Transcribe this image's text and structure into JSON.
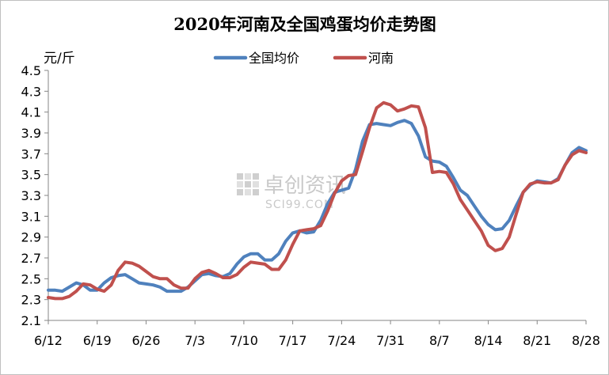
{
  "chart_data": {
    "type": "line",
    "title": "2020年河南及全国鸡蛋均价走势图",
    "ylabel": "元/斤",
    "xlabel": "",
    "ylim": [
      2.1,
      4.5
    ],
    "yticks": [
      "2.1",
      "2.3",
      "2.5",
      "2.7",
      "2.9",
      "3.1",
      "3.3",
      "3.5",
      "3.7",
      "3.9",
      "4.1",
      "4.3",
      "4.5"
    ],
    "xlim": [
      0,
      77
    ],
    "xtick_positions": [
      0,
      7,
      14,
      21,
      28,
      35,
      42,
      49,
      56,
      63,
      70,
      77
    ],
    "xticks": [
      "6/12",
      "6/19",
      "6/26",
      "7/3",
      "7/10",
      "7/17",
      "7/24",
      "7/31",
      "8/7",
      "8/14",
      "8/21",
      "8/28"
    ],
    "grid": false,
    "legend_position": "top-center",
    "x": [
      0,
      1,
      2,
      3,
      4,
      5,
      6,
      7,
      8,
      9,
      10,
      11,
      12,
      13,
      14,
      15,
      16,
      17,
      18,
      19,
      20,
      21,
      22,
      23,
      24,
      25,
      26,
      27,
      28,
      29,
      30,
      31,
      32,
      33,
      34,
      35,
      36,
      37,
      38,
      39,
      40,
      41,
      42,
      43,
      44,
      45,
      46,
      47,
      48,
      49,
      50,
      51,
      52,
      53,
      54,
      55,
      56,
      57,
      58,
      59,
      60,
      61,
      62,
      63,
      64,
      65,
      66,
      67,
      68,
      69,
      70,
      71,
      72,
      73,
      74,
      75,
      76,
      77
    ],
    "series": [
      {
        "name": "全国均价",
        "color": "#4f81bd",
        "values": [
          2.39,
          2.39,
          2.38,
          2.42,
          2.46,
          2.44,
          2.39,
          2.39,
          2.46,
          2.51,
          2.53,
          2.54,
          2.5,
          2.46,
          2.45,
          2.44,
          2.42,
          2.38,
          2.38,
          2.38,
          2.42,
          2.48,
          2.54,
          2.55,
          2.53,
          2.52,
          2.55,
          2.64,
          2.71,
          2.74,
          2.74,
          2.68,
          2.68,
          2.74,
          2.86,
          2.94,
          2.96,
          2.94,
          2.95,
          3.06,
          3.22,
          3.33,
          3.35,
          3.37,
          3.55,
          3.82,
          3.98,
          3.99,
          3.98,
          3.97,
          4.0,
          4.02,
          3.99,
          3.87,
          3.67,
          3.63,
          3.62,
          3.58,
          3.47,
          3.35,
          3.3,
          3.2,
          3.1,
          3.02,
          2.97,
          2.98,
          3.06,
          3.2,
          3.33,
          3.4,
          3.44,
          3.43,
          3.42,
          3.46,
          3.59,
          3.71,
          3.76,
          3.73
        ]
      },
      {
        "name": "河南",
        "color": "#c0504d",
        "values": [
          2.32,
          2.31,
          2.31,
          2.33,
          2.38,
          2.45,
          2.44,
          2.4,
          2.38,
          2.44,
          2.58,
          2.66,
          2.65,
          2.62,
          2.57,
          2.52,
          2.5,
          2.5,
          2.44,
          2.41,
          2.41,
          2.5,
          2.56,
          2.58,
          2.55,
          2.51,
          2.51,
          2.54,
          2.61,
          2.66,
          2.65,
          2.64,
          2.59,
          2.59,
          2.68,
          2.83,
          2.96,
          2.97,
          2.98,
          3.01,
          3.15,
          3.32,
          3.44,
          3.49,
          3.5,
          3.72,
          3.95,
          4.14,
          4.19,
          4.17,
          4.11,
          4.13,
          4.16,
          4.15,
          3.95,
          3.52,
          3.53,
          3.52,
          3.41,
          3.26,
          3.16,
          3.06,
          2.96,
          2.82,
          2.77,
          2.79,
          2.9,
          3.12,
          3.33,
          3.41,
          3.43,
          3.42,
          3.42,
          3.45,
          3.59,
          3.69,
          3.73,
          3.71
        ]
      }
    ]
  },
  "watermark": {
    "main": "卓创资讯",
    "sub": "SCI99.COM",
    "icon": "sci99-logo-icon"
  }
}
